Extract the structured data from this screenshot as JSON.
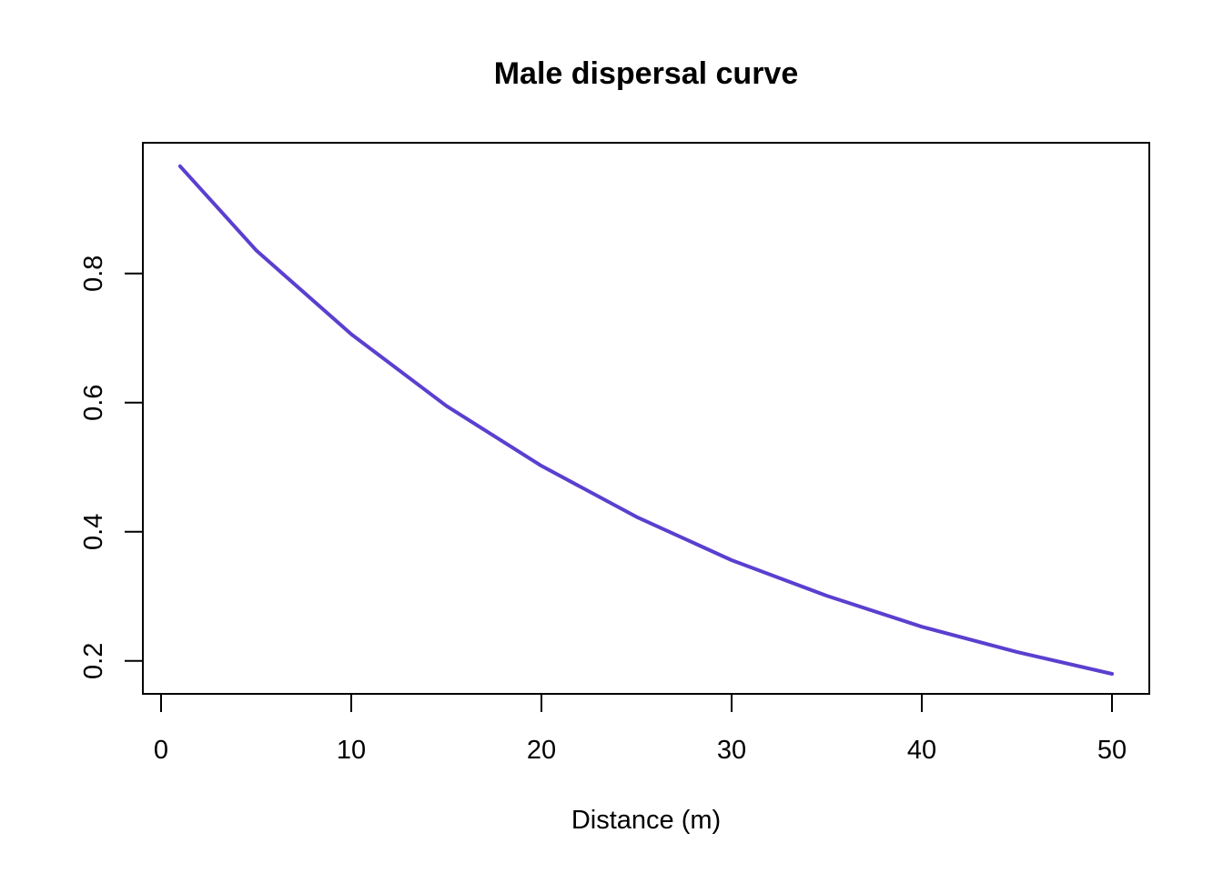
{
  "chart_data": {
    "type": "line",
    "title": "Male dispersal curve",
    "xlabel": "Distance (m)",
    "ylabel": "",
    "xlim": [
      0,
      50
    ],
    "ylim": [
      0.18,
      0.97
    ],
    "x_ticks": [
      0,
      10,
      20,
      30,
      40,
      50
    ],
    "x_tick_labels": [
      "0",
      "10",
      "20",
      "30",
      "40",
      "50"
    ],
    "y_ticks": [
      0.2,
      0.4,
      0.6,
      0.8
    ],
    "y_tick_labels": [
      "0.2",
      "0.4",
      "0.6",
      "0.8"
    ],
    "grid": false,
    "legend": "none",
    "series": [
      {
        "color": "#5b3fcf",
        "x": [
          1,
          5,
          10,
          15,
          20,
          25,
          30,
          35,
          40,
          45,
          50
        ],
        "y": [
          0.966,
          0.836,
          0.706,
          0.595,
          0.502,
          0.423,
          0.356,
          0.301,
          0.253,
          0.214,
          0.18
        ]
      }
    ]
  }
}
